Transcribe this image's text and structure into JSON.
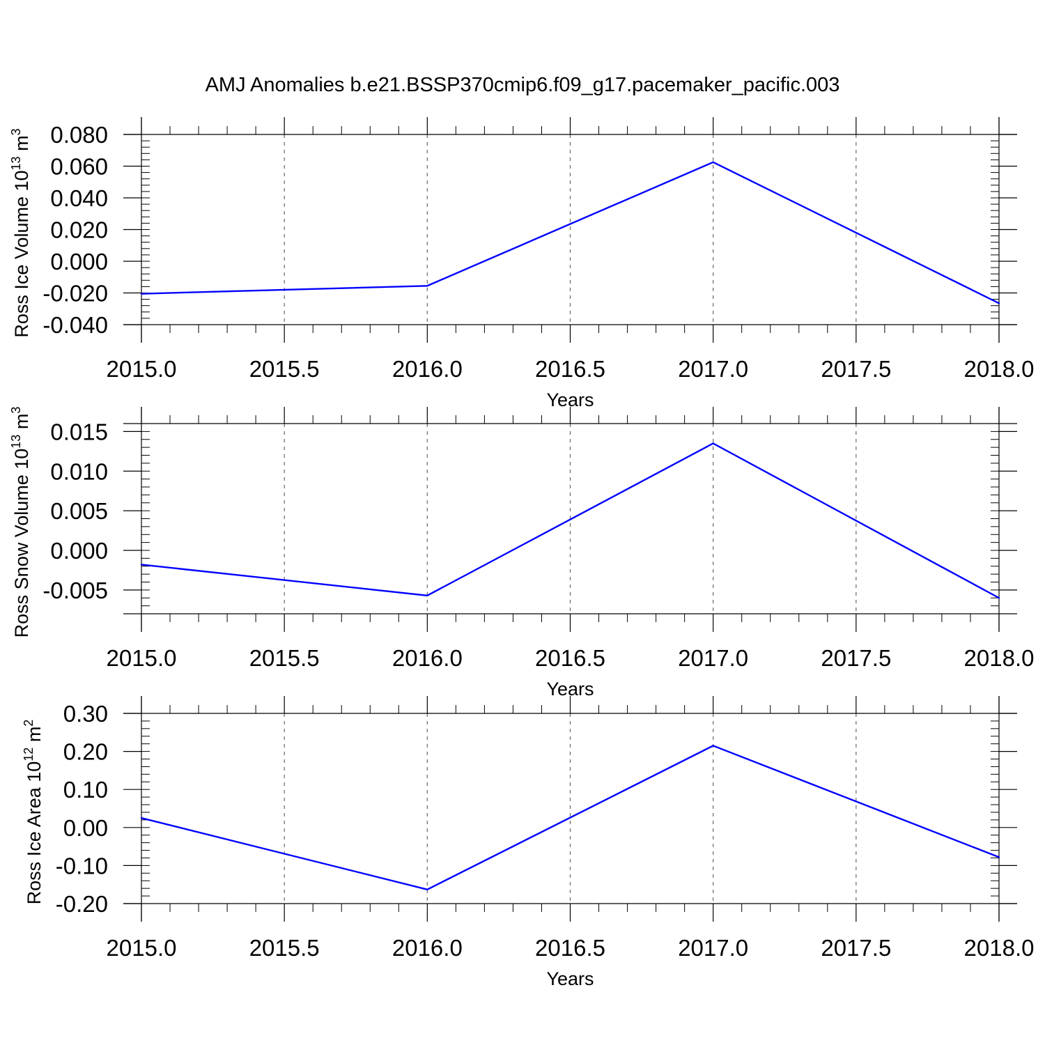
{
  "figure_title": "AMJ Anomalies b.e21.BSSP370cmip6.f09_g17.pacemaker_pacific.003",
  "colors": {
    "line": "#0000ff",
    "axes": "#000000",
    "grid": "#666666"
  },
  "chart_data": [
    {
      "type": "line",
      "title": "",
      "xlabel": "Years",
      "ylabel": {
        "base": "Ross Ice Volume 10",
        "exp": "13",
        "unit": " m",
        "unit_exp": "3"
      },
      "x": [
        2015,
        2016,
        2017,
        2018
      ],
      "series": [
        {
          "values": [
            -0.0205,
            -0.0155,
            0.0625,
            -0.0265
          ]
        }
      ],
      "xlim": [
        2015,
        2018
      ],
      "ylim": [
        -0.04,
        0.08
      ],
      "xticks": [
        2015.0,
        2015.5,
        2016.0,
        2016.5,
        2017.0,
        2017.5,
        2018.0
      ],
      "xtick_labels": [
        "2015.0",
        "2015.5",
        "2016.0",
        "2016.5",
        "2017.0",
        "2017.5",
        "2018.0"
      ],
      "yticks": [
        -0.04,
        -0.02,
        0.0,
        0.02,
        0.04,
        0.06,
        0.08
      ],
      "ytick_labels": [
        "-0.040",
        "-0.020",
        "0.000",
        "0.020",
        "0.040",
        "0.060",
        "0.080"
      ],
      "vgrid": [
        2015.5,
        2016.0,
        2016.5,
        2017.0,
        2017.5
      ],
      "grid": "vertical dashed"
    },
    {
      "type": "line",
      "title": "",
      "xlabel": "Years",
      "ylabel": {
        "base": "Ross Snow Volume 10",
        "exp": "13",
        "unit": " m",
        "unit_exp": "3"
      },
      "x": [
        2015,
        2016,
        2017,
        2018
      ],
      "series": [
        {
          "values": [
            -0.0018,
            -0.0057,
            0.0135,
            -0.006
          ]
        }
      ],
      "xlim": [
        2015,
        2018
      ],
      "ylim": [
        -0.008,
        0.016
      ],
      "xticks": [
        2015.0,
        2015.5,
        2016.0,
        2016.5,
        2017.0,
        2017.5,
        2018.0
      ],
      "xtick_labels": [
        "2015.0",
        "2015.5",
        "2016.0",
        "2016.5",
        "2017.0",
        "2017.5",
        "2018.0"
      ],
      "yticks": [
        -0.005,
        0.0,
        0.005,
        0.01,
        0.015
      ],
      "ytick_labels": [
        "-0.005",
        "0.000",
        "0.005",
        "0.010",
        "0.015"
      ],
      "vgrid": [
        2015.5,
        2016.0,
        2016.5,
        2017.0,
        2017.5
      ],
      "grid": "vertical dashed"
    },
    {
      "type": "line",
      "title": "",
      "xlabel": "Years",
      "ylabel": {
        "base": "Ross Ice Area 10",
        "exp": "12",
        "unit": " m",
        "unit_exp": "2"
      },
      "x": [
        2015,
        2016,
        2017,
        2018
      ],
      "series": [
        {
          "values": [
            0.025,
            -0.163,
            0.215,
            -0.078
          ]
        }
      ],
      "xlim": [
        2015,
        2018
      ],
      "ylim": [
        -0.2,
        0.3
      ],
      "xticks": [
        2015.0,
        2015.5,
        2016.0,
        2016.5,
        2017.0,
        2017.5,
        2018.0
      ],
      "xtick_labels": [
        "2015.0",
        "2015.5",
        "2016.0",
        "2016.5",
        "2017.0",
        "2017.5",
        "2018.0"
      ],
      "yticks": [
        -0.2,
        -0.1,
        0.0,
        0.1,
        0.2,
        0.3
      ],
      "ytick_labels": [
        "-0.20",
        "-0.10",
        "0.00",
        "0.10",
        "0.20",
        "0.30"
      ],
      "vgrid": [
        2015.5,
        2016.0,
        2016.5,
        2017.0,
        2017.5
      ],
      "grid": "vertical dashed"
    }
  ]
}
